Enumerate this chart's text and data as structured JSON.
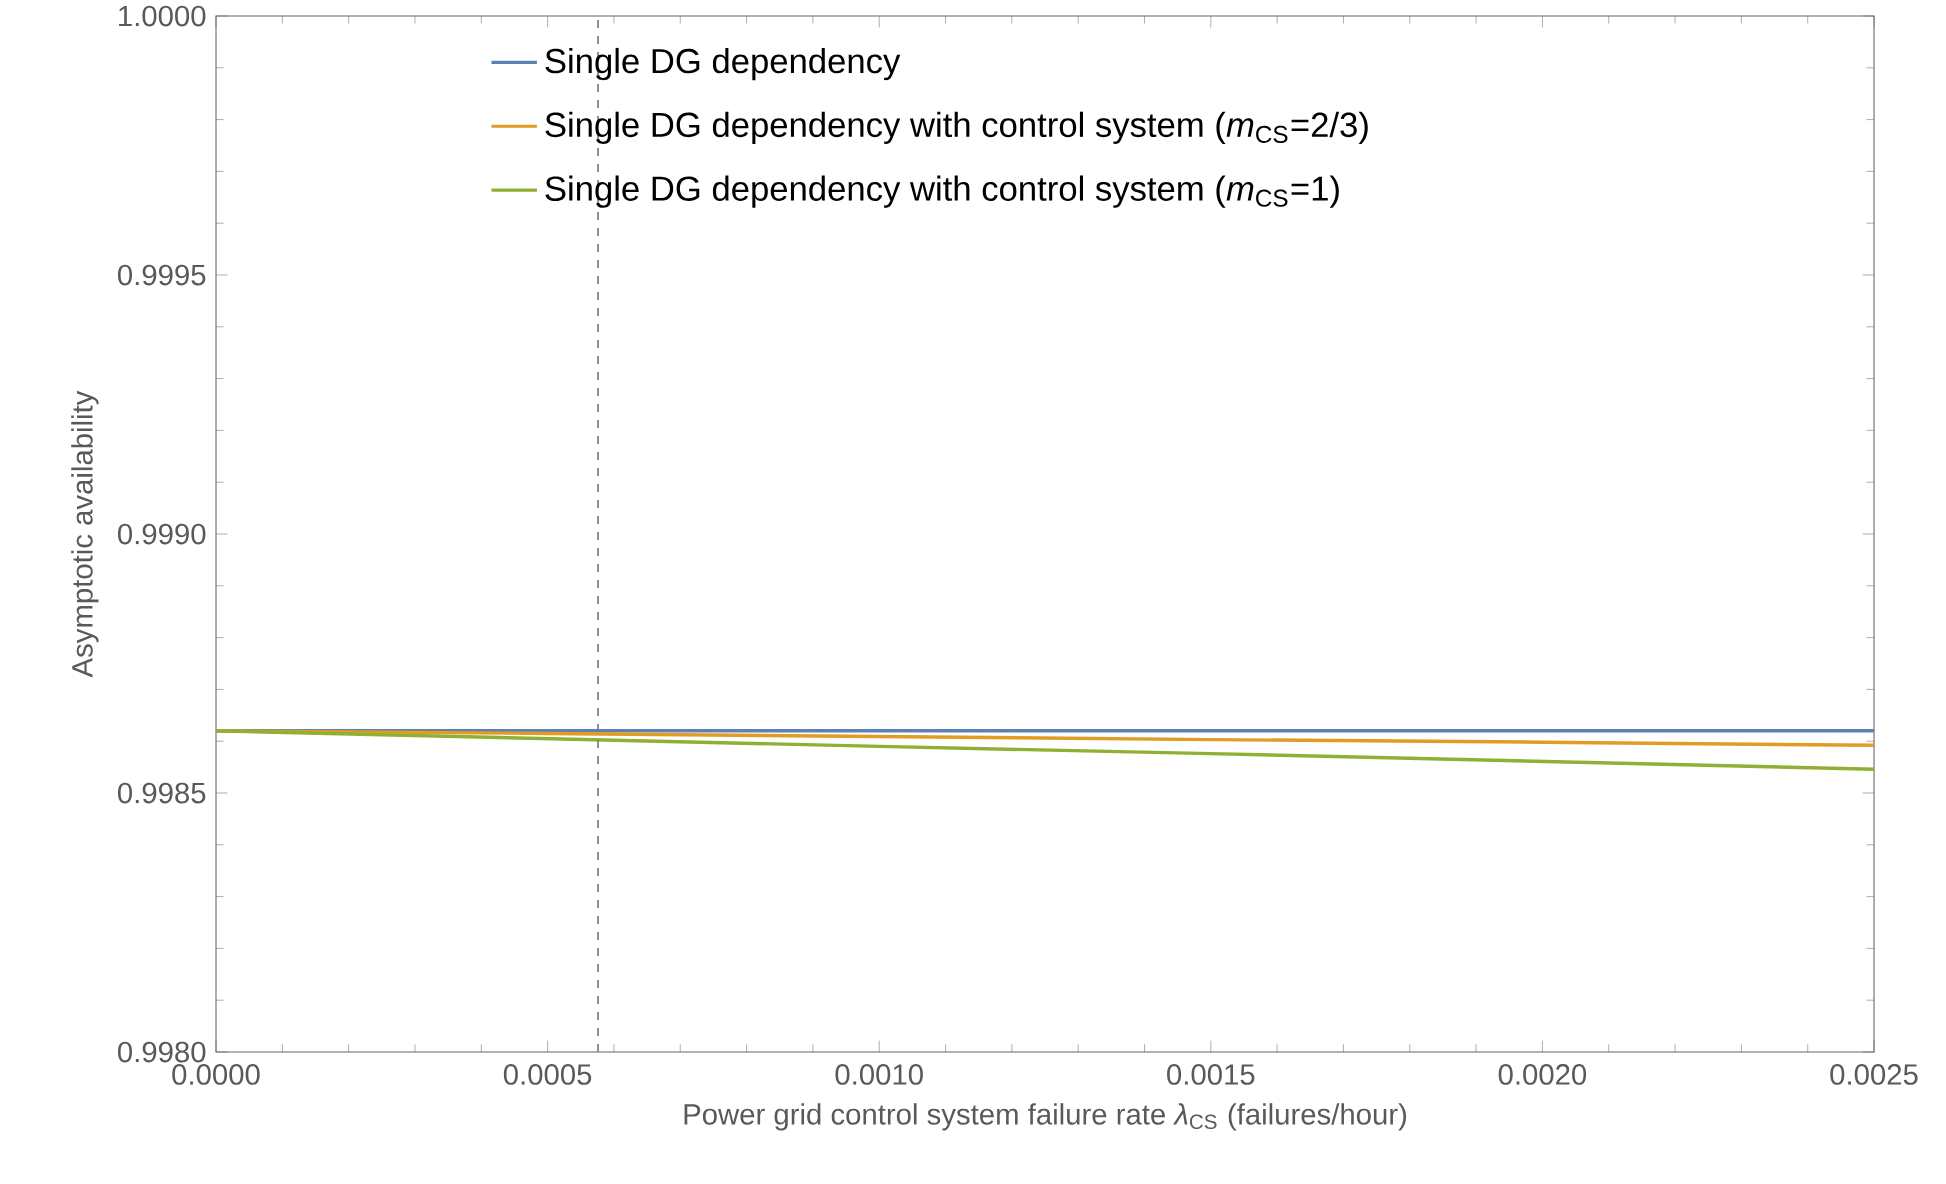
{
  "chart_data": {
    "type": "line",
    "xlabel": "Power grid control system failure rate *λ*$_{CS}$ (failures/hour)",
    "ylabel": "Asymptotic availability",
    "x": [
      0,
      0.0005,
      0.001,
      0.0015,
      0.002,
      0.0025
    ],
    "series": [
      {
        "name": "Single DG dependency",
        "color": "#5e81b5",
        "values": [
          0.99862,
          0.99862,
          0.99862,
          0.99862,
          0.99862,
          0.99862
        ]
      },
      {
        "name": "Single DG dependency with control system (*m*$_{CS}$=2/3)",
        "color": "#e19c24",
        "values": [
          0.99862,
          0.998615,
          0.998609,
          0.998603,
          0.998598,
          0.998592
        ]
      },
      {
        "name": "Single DG dependency with control system (*m*$_{CS}$=1)",
        "color": "#8fb032",
        "values": [
          0.99862,
          0.998605,
          0.99859,
          0.998576,
          0.998561,
          0.998546
        ]
      }
    ],
    "xlim": [
      0,
      0.0025
    ],
    "ylim": [
      0.998,
      1.0
    ],
    "xticks": [
      {
        "value": 0,
        "label": "0.0000"
      },
      {
        "value": 0.0005,
        "label": "0.0005"
      },
      {
        "value": 0.001,
        "label": "0.0010"
      },
      {
        "value": 0.0015,
        "label": "0.0015"
      },
      {
        "value": 0.002,
        "label": "0.0020"
      },
      {
        "value": 0.0025,
        "label": "0.0025"
      }
    ],
    "yticks": [
      {
        "value": 0.998,
        "label": "0.9980"
      },
      {
        "value": 0.9985,
        "label": "0.9985"
      },
      {
        "value": 0.999,
        "label": "0.9990"
      },
      {
        "value": 0.9995,
        "label": "0.9995"
      },
      {
        "value": 1.0,
        "label": "1.0000"
      }
    ],
    "ref_lines": [
      {
        "axis": "x",
        "value": 0.000576,
        "color": "#777777",
        "line_style": "dashed"
      }
    ],
    "legend": "top",
    "grid": false,
    "marker": "none",
    "line_style": "solid"
  }
}
